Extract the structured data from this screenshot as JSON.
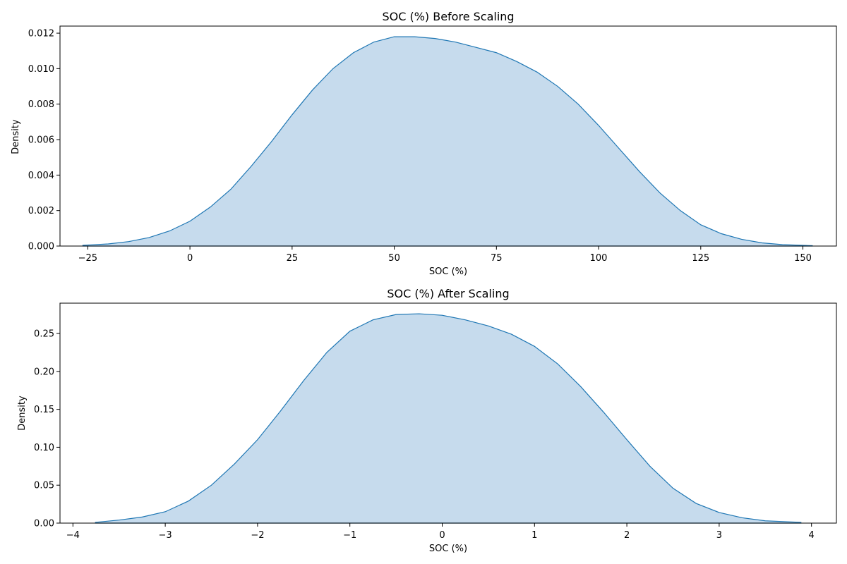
{
  "chart_data": [
    {
      "type": "area",
      "title": "SOC (%) Before Scaling",
      "xlabel": "SOC (%)",
      "ylabel": "Density",
      "xlim": [
        -31.8,
        158.2
      ],
      "ylim": [
        0,
        0.0124
      ],
      "xticks": [
        -25,
        0,
        25,
        50,
        75,
        100,
        125,
        150
      ],
      "xtick_labels": [
        "−25",
        "0",
        "25",
        "50",
        "75",
        "100",
        "125",
        "150"
      ],
      "yticks": [
        0.0,
        0.002,
        0.004,
        0.006,
        0.008,
        0.01,
        0.012
      ],
      "ytick_labels": [
        "0.000",
        "0.002",
        "0.004",
        "0.006",
        "0.008",
        "0.010",
        "0.012"
      ],
      "grid": false,
      "line_color": "#1f77b4",
      "fill_color": "#c6dbed",
      "series": [
        {
          "x": [
            -26.3,
            -20,
            -15,
            -10,
            -5,
            0,
            5,
            10,
            15,
            20,
            25,
            30,
            35,
            40,
            45,
            50,
            55,
            60,
            65,
            70,
            75,
            80,
            85,
            90,
            95,
            100,
            105,
            110,
            115,
            120,
            125,
            130,
            135,
            140,
            145,
            152.4
          ],
          "y": [
            4e-05,
            0.00012,
            0.00025,
            0.00048,
            0.00085,
            0.0014,
            0.0022,
            0.0032,
            0.0045,
            0.0059,
            0.0074,
            0.0088,
            0.01,
            0.0109,
            0.0115,
            0.0118,
            0.0118,
            0.0117,
            0.0115,
            0.0112,
            0.0109,
            0.0104,
            0.0098,
            0.009,
            0.008,
            0.0068,
            0.0055,
            0.0042,
            0.003,
            0.002,
            0.0012,
            0.0007,
            0.00038,
            0.00018,
            8e-05,
            2e-05
          ]
        }
      ]
    },
    {
      "type": "area",
      "title": "SOC (%) After Scaling",
      "xlabel": "SOC (%)",
      "ylabel": "Density",
      "xlim": [
        -4.14,
        4.27
      ],
      "ylim": [
        0,
        0.29
      ],
      "xticks": [
        -4,
        -3,
        -2,
        -1,
        0,
        1,
        2,
        3,
        4
      ],
      "xtick_labels": [
        "−4",
        "−3",
        "−2",
        "−1",
        "0",
        "1",
        "2",
        "3",
        "4"
      ],
      "yticks": [
        0.0,
        0.05,
        0.1,
        0.15,
        0.2,
        0.25
      ],
      "ytick_labels": [
        "0.00",
        "0.05",
        "0.10",
        "0.15",
        "0.20",
        "0.25"
      ],
      "grid": false,
      "line_color": "#1f77b4",
      "fill_color": "#c6dbed",
      "series": [
        {
          "x": [
            -3.76,
            -3.5,
            -3.25,
            -3.0,
            -2.75,
            -2.5,
            -2.25,
            -2.0,
            -1.75,
            -1.5,
            -1.25,
            -1.0,
            -0.75,
            -0.5,
            -0.25,
            0.0,
            0.25,
            0.5,
            0.75,
            1.0,
            1.25,
            1.5,
            1.75,
            2.0,
            2.25,
            2.5,
            2.75,
            3.0,
            3.25,
            3.5,
            3.89
          ],
          "y": [
            0.001,
            0.004,
            0.008,
            0.015,
            0.029,
            0.05,
            0.078,
            0.11,
            0.148,
            0.188,
            0.225,
            0.253,
            0.268,
            0.275,
            0.276,
            0.274,
            0.268,
            0.26,
            0.249,
            0.233,
            0.21,
            0.18,
            0.146,
            0.11,
            0.075,
            0.046,
            0.026,
            0.014,
            0.007,
            0.003,
            0.001
          ]
        }
      ]
    }
  ]
}
